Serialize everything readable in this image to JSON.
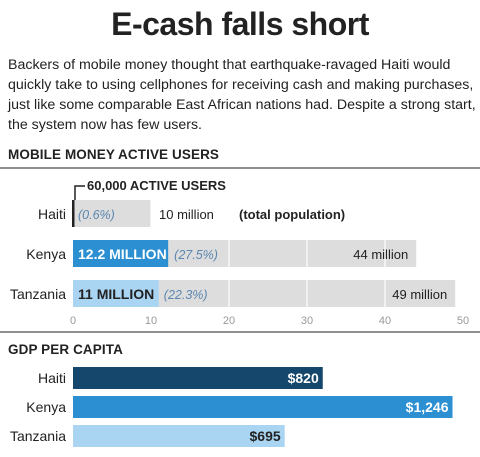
{
  "title": "E-cash falls short",
  "dek": "Backers of mobile money thought that earthquake-ravaged Haiti would quickly take to using cellphones for receiving cash and making purchases, just like some comparable East African nations had. Despite a strong start, the system now has few users.",
  "chart_data": [
    {
      "type": "bar",
      "title": "MOBILE MONEY ACTIVE USERS",
      "annotation": "60,000 ACTIVE USERS",
      "categories": [
        "Haiti",
        "Kenya",
        "Tanzania"
      ],
      "series": [
        {
          "values": [
            0.06,
            12.2,
            11.0
          ],
          "labels": [
            "",
            "12.2 MILLION",
            "11 MILLION"
          ]
        },
        {
          "values": [
            10,
            44,
            49
          ],
          "labels": [
            "10 million",
            "44 million",
            "49 million"
          ]
        }
      ],
      "percent_labels": [
        "(0.6%)",
        "(27.5%)",
        "(22.3%)"
      ],
      "haiti_total_suffix": "(total population)",
      "xlim": [
        0,
        50
      ],
      "xticks": [
        "0",
        "10",
        "20",
        "30",
        "40",
        "50"
      ],
      "colors": {
        "active_kenya": "#2b8fd1",
        "active_tanzania": "#a9d4f2",
        "population": "#dddddd",
        "percent_text": "#5b86b0"
      }
    },
    {
      "type": "bar",
      "title": "GDP PER CAPITA",
      "categories": [
        "Haiti",
        "Kenya",
        "Tanzania"
      ],
      "values": [
        820,
        1246,
        695
      ],
      "labels": [
        "$820",
        "$1,246",
        "$695"
      ],
      "xlim": [
        0,
        1310
      ],
      "colors": [
        "#14476b",
        "#2b8fd1",
        "#a9d4f2"
      ]
    }
  ]
}
